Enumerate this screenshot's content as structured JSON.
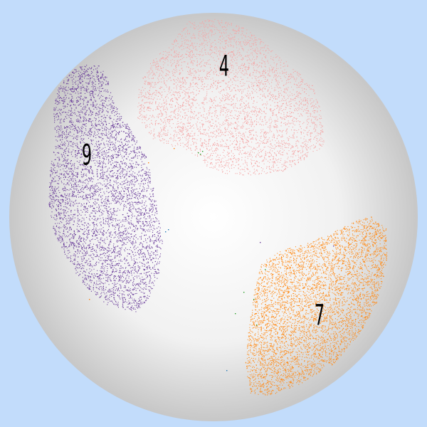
{
  "chart_data": {
    "type": "scatter",
    "title": "",
    "xlabel": "",
    "ylabel": "",
    "grid": false,
    "legend": "none",
    "background_color": "#c2dcfb",
    "sphere_colors": {
      "center": "#ffffff",
      "edge": "#c7c7c7"
    },
    "clusters": [
      {
        "label": "4",
        "color": "#f4a6a6",
        "approx_points": 4200
      },
      {
        "label": "9",
        "color": "#6a3d9a",
        "approx_points": 5000
      },
      {
        "label": "7",
        "color": "#ff8c1a",
        "approx_points": 5200
      }
    ],
    "stray_point_colors": [
      "#2ca02c",
      "#1f77b4",
      "#ff7f0e",
      "#6a3d9a"
    ]
  }
}
